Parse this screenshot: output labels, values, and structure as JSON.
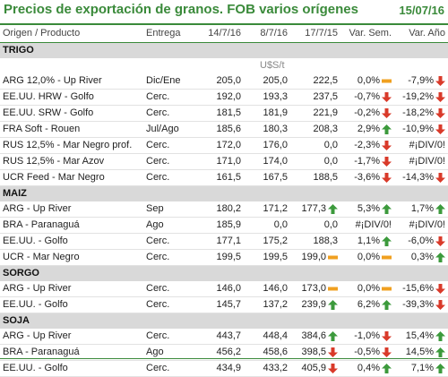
{
  "header": {
    "title": "Precios de exportación de granos. FOB varios orígenes",
    "date": "15/07/16"
  },
  "columns": [
    "Origen / Producto",
    "Entrega",
    "14/7/16",
    "8/7/16",
    "17/7/15",
    "Var. Sem.",
    "Var. Año"
  ],
  "units": "U$S/t",
  "colors": {
    "accent": "#3a8a3a",
    "up": "#3c9a3c",
    "down": "#d93a2a",
    "flat": "#f0a020"
  },
  "sections": [
    {
      "name": "TRIGO",
      "rows": [
        {
          "product": "ARG 12,0% - Up River",
          "delivery": "Dic/Ene",
          "p1": "205,0",
          "p2": "205,0",
          "p3": "222,5",
          "ic1": "flat",
          "v1": "0,0%",
          "ic2": "down",
          "v2": "-7,9%"
        },
        {
          "product": "EE.UU. HRW - Golfo",
          "delivery": "Cerc.",
          "p1": "192,0",
          "p2": "193,3",
          "p3": "237,5",
          "ic1": "down",
          "v1": "-0,7%",
          "ic2": "down",
          "v2": "-19,2%"
        },
        {
          "product": "EE.UU. SRW - Golfo",
          "delivery": "Cerc.",
          "p1": "181,5",
          "p2": "181,9",
          "p3": "221,9",
          "ic1": "down",
          "v1": "-0,2%",
          "ic2": "down",
          "v2": "-18,2%"
        },
        {
          "product": "FRA Soft - Rouen",
          "delivery": "Jul/Ago",
          "p1": "185,6",
          "p2": "180,3",
          "p3": "208,3",
          "ic1": "up",
          "v1": "2,9%",
          "ic2": "down",
          "v2": "-10,9%"
        },
        {
          "product": "RUS 12,5% - Mar Negro prof.",
          "delivery": "Cerc.",
          "p1": "172,0",
          "p2": "176,0",
          "p3": "0,0",
          "ic1": "down",
          "v1": "-2,3%",
          "ic2": "",
          "v2": "#¡DIV/0!"
        },
        {
          "product": "RUS 12,5% - Mar Azov",
          "delivery": "Cerc.",
          "p1": "171,0",
          "p2": "174,0",
          "p3": "0,0",
          "ic1": "down",
          "v1": "-1,7%",
          "ic2": "",
          "v2": "#¡DIV/0!"
        },
        {
          "product": "UCR Feed - Mar Negro",
          "delivery": "Cerc.",
          "p1": "161,5",
          "p2": "167,5",
          "p3": "188,5",
          "ic1": "down",
          "v1": "-3,6%",
          "ic2": "down",
          "v2": "-14,3%"
        }
      ]
    },
    {
      "name": "MAIZ",
      "rows": [
        {
          "product": "ARG - Up River",
          "delivery": "Sep",
          "p1": "180,2",
          "p2": "171,2",
          "p3": "177,3",
          "ic0": "up",
          "ic1": "up",
          "v1": "5,3%",
          "ic2": "up",
          "v2": "1,7%"
        },
        {
          "product": "BRA - Paranaguá",
          "delivery": "Ago",
          "p1": "185,9",
          "p2": "0,0",
          "p3": "0,0",
          "ic1": "",
          "v1": "#¡DIV/0!",
          "ic2": "",
          "v2": "#¡DIV/0!"
        },
        {
          "product": "EE.UU. - Golfo",
          "delivery": "Cerc.",
          "p1": "177,1",
          "p2": "175,2",
          "p3": "188,3",
          "ic1": "up",
          "v1": "1,1%",
          "ic2": "down",
          "v2": "-6,0%"
        },
        {
          "product": "UCR - Mar Negro",
          "delivery": "Cerc.",
          "p1": "199,5",
          "p2": "199,5",
          "p3": "199,0",
          "ic0": "flat",
          "ic1": "flat",
          "v1": "0,0%",
          "ic2": "up",
          "v2": "0,3%"
        }
      ]
    },
    {
      "name": "SORGO",
      "rows": [
        {
          "product": "ARG - Up River",
          "delivery": "Cerc.",
          "p1": "146,0",
          "p2": "146,0",
          "p3": "173,0",
          "ic0": "flat",
          "ic1": "flat",
          "v1": "0,0%",
          "ic2": "down",
          "v2": "-15,6%"
        },
        {
          "product": "EE.UU. - Golfo",
          "delivery": "Cerc.",
          "p1": "145,7",
          "p2": "137,2",
          "p3": "239,9",
          "ic0": "up",
          "ic1": "up",
          "v1": "6,2%",
          "ic2": "down",
          "v2": "-39,3%"
        }
      ]
    },
    {
      "name": "SOJA",
      "rows": [
        {
          "product": "ARG - Up River",
          "delivery": "Cerc.",
          "p1": "443,7",
          "p2": "448,4",
          "p3": "384,6",
          "ic0": "up",
          "ic1": "down",
          "v1": "-1,0%",
          "ic2": "up",
          "v2": "15,4%"
        },
        {
          "product": "BRA - Paranaguá",
          "delivery": "Ago",
          "p1": "456,2",
          "p2": "458,6",
          "p3": "398,5",
          "ic0": "down",
          "ic1": "down",
          "v1": "-0,5%",
          "ic2": "up",
          "v2": "14,5%"
        },
        {
          "product": "EE.UU. - Golfo",
          "delivery": "Cerc.",
          "p1": "434,9",
          "p2": "433,2",
          "p3": "405,9",
          "ic0": "down",
          "ic1": "up",
          "v1": "0,4%",
          "ic2": "up",
          "v2": "7,1%"
        }
      ]
    }
  ]
}
